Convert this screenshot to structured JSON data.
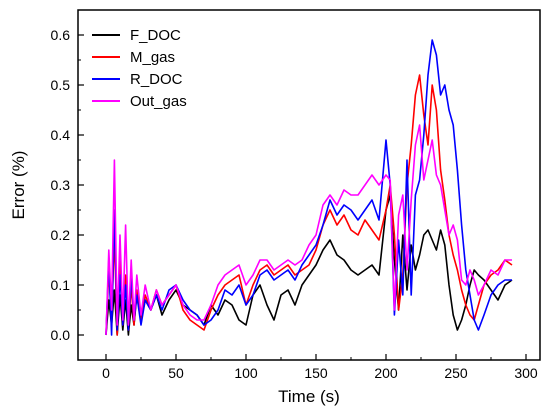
{
  "chart_data": {
    "type": "line",
    "title": "",
    "xlabel": "Time (s)",
    "ylabel": "Error (%)",
    "xlim": [
      -20,
      310
    ],
    "ylim": [
      -0.05,
      0.65
    ],
    "x_ticks": [
      0,
      50,
      100,
      150,
      200,
      250,
      300
    ],
    "y_ticks": [
      0.0,
      0.1,
      0.2,
      0.3,
      0.4,
      0.5,
      0.6
    ],
    "x_tick_labels": [
      "0",
      "50",
      "100",
      "150",
      "200",
      "250",
      "300"
    ],
    "y_tick_labels": [
      "0.0",
      "0.1",
      "0.2",
      "0.3",
      "0.4",
      "0.5",
      "0.6"
    ],
    "legend_position": "top-left",
    "grid": false,
    "series": [
      {
        "name": "F_DOC",
        "color": "#000000",
        "x": [
          0,
          2,
          4,
          6,
          8,
          10,
          12,
          14,
          16,
          18,
          20,
          22,
          25,
          28,
          32,
          36,
          40,
          45,
          50,
          55,
          60,
          65,
          70,
          75,
          80,
          85,
          90,
          95,
          100,
          105,
          110,
          115,
          120,
          125,
          130,
          135,
          140,
          145,
          150,
          155,
          160,
          165,
          170,
          175,
          180,
          185,
          190,
          195,
          200,
          203,
          206,
          209,
          212,
          215,
          218,
          221,
          224,
          227,
          230,
          233,
          236,
          239,
          242,
          245,
          248,
          251,
          254,
          257,
          260,
          263,
          266,
          270,
          275,
          280,
          285,
          290
        ],
        "y": [
          0.0,
          0.07,
          0.02,
          0.09,
          0.0,
          0.08,
          0.01,
          0.07,
          0.0,
          0.06,
          0.02,
          0.08,
          0.03,
          0.07,
          0.05,
          0.08,
          0.04,
          0.07,
          0.09,
          0.06,
          0.05,
          0.04,
          0.02,
          0.06,
          0.04,
          0.07,
          0.06,
          0.03,
          0.02,
          0.08,
          0.1,
          0.06,
          0.03,
          0.08,
          0.09,
          0.06,
          0.1,
          0.12,
          0.14,
          0.17,
          0.19,
          0.16,
          0.15,
          0.13,
          0.12,
          0.13,
          0.14,
          0.12,
          0.25,
          0.28,
          0.15,
          0.05,
          0.2,
          0.09,
          0.18,
          0.13,
          0.16,
          0.2,
          0.21,
          0.19,
          0.17,
          0.21,
          0.18,
          0.1,
          0.04,
          0.01,
          0.03,
          0.06,
          0.1,
          0.13,
          0.12,
          0.11,
          0.09,
          0.07,
          0.1,
          0.11
        ]
      },
      {
        "name": "M_gas",
        "color": "#ff0000",
        "x": [
          0,
          2,
          4,
          6,
          8,
          10,
          12,
          14,
          16,
          18,
          20,
          22,
          25,
          28,
          32,
          36,
          40,
          45,
          50,
          55,
          60,
          65,
          70,
          75,
          80,
          85,
          90,
          95,
          100,
          105,
          110,
          115,
          120,
          125,
          130,
          135,
          140,
          145,
          150,
          155,
          160,
          165,
          170,
          175,
          180,
          185,
          190,
          195,
          200,
          203,
          206,
          209,
          212,
          215,
          218,
          221,
          224,
          227,
          230,
          233,
          236,
          239,
          242,
          245,
          248,
          251,
          254,
          257,
          260,
          263,
          266,
          270,
          275,
          280,
          285,
          290
        ],
        "y": [
          0.0,
          0.13,
          0.03,
          0.2,
          0.0,
          0.15,
          0.02,
          0.12,
          0.01,
          0.1,
          0.02,
          0.09,
          0.03,
          0.08,
          0.05,
          0.09,
          0.06,
          0.08,
          0.1,
          0.05,
          0.03,
          0.02,
          0.01,
          0.05,
          0.08,
          0.1,
          0.11,
          0.12,
          0.06,
          0.1,
          0.13,
          0.14,
          0.12,
          0.13,
          0.14,
          0.12,
          0.13,
          0.14,
          0.17,
          0.22,
          0.25,
          0.22,
          0.24,
          0.21,
          0.2,
          0.23,
          0.21,
          0.19,
          0.25,
          0.3,
          0.2,
          0.05,
          0.12,
          0.3,
          0.38,
          0.48,
          0.52,
          0.44,
          0.38,
          0.5,
          0.45,
          0.33,
          0.27,
          0.2,
          0.16,
          0.13,
          0.09,
          0.06,
          0.04,
          0.03,
          0.06,
          0.1,
          0.12,
          0.13,
          0.15,
          0.14
        ]
      },
      {
        "name": "R_DOC",
        "color": "#0000ff",
        "x": [
          0,
          2,
          4,
          6,
          8,
          10,
          12,
          14,
          16,
          18,
          20,
          22,
          25,
          28,
          32,
          36,
          40,
          45,
          50,
          55,
          60,
          65,
          70,
          75,
          80,
          85,
          90,
          95,
          100,
          105,
          110,
          115,
          120,
          125,
          130,
          135,
          140,
          145,
          150,
          155,
          160,
          165,
          170,
          175,
          180,
          185,
          190,
          195,
          200,
          203,
          206,
          209,
          212,
          215,
          218,
          221,
          224,
          227,
          230,
          233,
          236,
          239,
          242,
          245,
          248,
          251,
          254,
          257,
          260,
          263,
          266,
          270,
          275,
          280,
          285,
          290
        ],
        "y": [
          0.0,
          0.15,
          0.0,
          0.25,
          0.01,
          0.12,
          0.02,
          0.1,
          0.01,
          0.12,
          0.03,
          0.08,
          0.02,
          0.07,
          0.05,
          0.08,
          0.05,
          0.09,
          0.1,
          0.07,
          0.05,
          0.04,
          0.02,
          0.03,
          0.05,
          0.09,
          0.08,
          0.1,
          0.06,
          0.08,
          0.12,
          0.13,
          0.11,
          0.12,
          0.13,
          0.11,
          0.14,
          0.16,
          0.18,
          0.22,
          0.27,
          0.24,
          0.26,
          0.25,
          0.23,
          0.25,
          0.27,
          0.23,
          0.39,
          0.3,
          0.04,
          0.19,
          0.08,
          0.35,
          0.08,
          0.28,
          0.31,
          0.4,
          0.52,
          0.59,
          0.56,
          0.48,
          0.5,
          0.45,
          0.42,
          0.33,
          0.22,
          0.13,
          0.08,
          0.03,
          0.01,
          0.04,
          0.08,
          0.1,
          0.11,
          0.11
        ]
      },
      {
        "name": "Out_gas",
        "color": "#ff00ff",
        "x": [
          0,
          2,
          4,
          6,
          8,
          10,
          12,
          14,
          16,
          18,
          20,
          22,
          25,
          28,
          32,
          36,
          40,
          45,
          50,
          55,
          60,
          65,
          70,
          75,
          80,
          85,
          90,
          95,
          100,
          105,
          110,
          115,
          120,
          125,
          130,
          135,
          140,
          145,
          150,
          155,
          160,
          165,
          170,
          175,
          180,
          185,
          190,
          195,
          200,
          203,
          206,
          209,
          212,
          215,
          218,
          221,
          224,
          227,
          230,
          233,
          236,
          239,
          242,
          245,
          248,
          251,
          254,
          257,
          260,
          263,
          266,
          270,
          275,
          280,
          285,
          290
        ],
        "y": [
          0.0,
          0.17,
          0.05,
          0.35,
          0.02,
          0.2,
          0.03,
          0.22,
          0.02,
          0.15,
          0.03,
          0.12,
          0.04,
          0.1,
          0.05,
          0.09,
          0.06,
          0.08,
          0.1,
          0.06,
          0.04,
          0.03,
          0.03,
          0.06,
          0.1,
          0.12,
          0.13,
          0.14,
          0.1,
          0.12,
          0.15,
          0.15,
          0.13,
          0.14,
          0.15,
          0.14,
          0.15,
          0.18,
          0.2,
          0.26,
          0.28,
          0.26,
          0.29,
          0.28,
          0.28,
          0.3,
          0.32,
          0.3,
          0.32,
          0.31,
          0.05,
          0.24,
          0.28,
          0.13,
          0.27,
          0.38,
          0.42,
          0.31,
          0.35,
          0.39,
          0.32,
          0.3,
          0.25,
          0.2,
          0.22,
          0.19,
          0.11,
          0.1,
          0.13,
          0.11,
          0.08,
          0.1,
          0.13,
          0.12,
          0.15,
          0.15
        ]
      }
    ]
  }
}
